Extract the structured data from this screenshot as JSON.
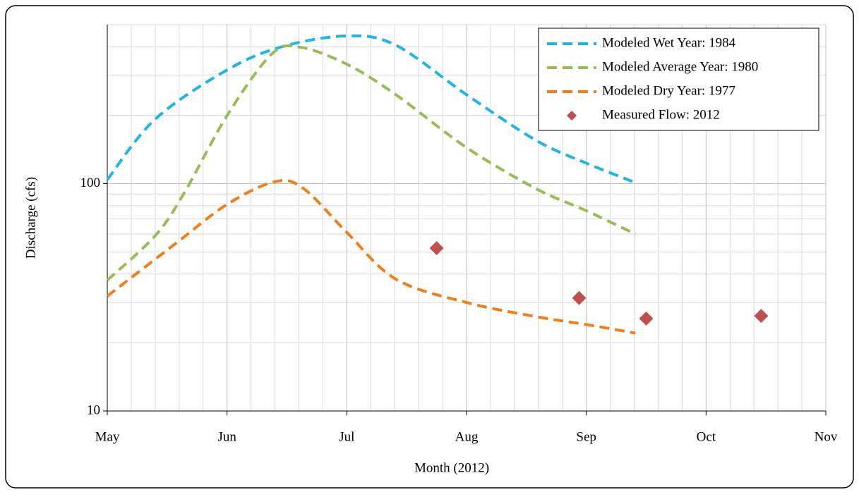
{
  "chart_data": {
    "type": "line",
    "log_y": true,
    "grid": true,
    "legend": "upper right",
    "xlabel": "Month (2012)",
    "ylabel": "Discharge (cfs)",
    "xlim": [
      0,
      6
    ],
    "xticks": [
      {
        "value": 0,
        "label": "May"
      },
      {
        "value": 1,
        "label": "Jun"
      },
      {
        "value": 2,
        "label": "Jul"
      },
      {
        "value": 3,
        "label": "Aug"
      },
      {
        "value": 4,
        "label": "Sep"
      },
      {
        "value": 5,
        "label": "Oct"
      },
      {
        "value": 6,
        "label": "Nov"
      }
    ],
    "ylim": [
      10,
      500
    ],
    "yticks": [
      10,
      100
    ],
    "series": [
      {
        "name": "Modeled Wet Year: 1984",
        "color": "#1fb5e8",
        "style": "dashed",
        "x": [
          0,
          0.4,
          1.0,
          1.46,
          2.0,
          2.41,
          3.0,
          3.58,
          4.0,
          4.41
        ],
        "values": [
          104,
          192,
          316,
          400,
          446,
          406,
          246,
          155,
          123,
          101
        ]
      },
      {
        "name": "Modeled Average Year: 1980",
        "color": "#9bbb59",
        "style": "dashed",
        "x": [
          0,
          0.4,
          0.64,
          1.0,
          1.37,
          1.61,
          2.0,
          2.41,
          3.0,
          3.58,
          4.0,
          4.41
        ],
        "values": [
          37.6,
          59,
          90.6,
          199,
          370,
          398,
          335,
          246,
          144,
          95,
          76,
          60
        ]
      },
      {
        "name": "Modeled Dry Year: 1977",
        "color": "#f07f1a",
        "style": "dashed",
        "x": [
          0,
          0.58,
          1.0,
          1.4,
          1.64,
          2.0,
          2.41,
          3.0,
          3.58,
          4.0,
          4.41
        ],
        "values": [
          32,
          55,
          81,
          102,
          95,
          61,
          38,
          30,
          26,
          24,
          22
        ]
      },
      {
        "name": "Measured Flow: 2012",
        "color": "#c0504d",
        "style": "markers",
        "x": [
          2.75,
          3.94,
          4.5,
          5.46
        ],
        "values": [
          52,
          31.4,
          25.5,
          26.2
        ]
      }
    ]
  }
}
